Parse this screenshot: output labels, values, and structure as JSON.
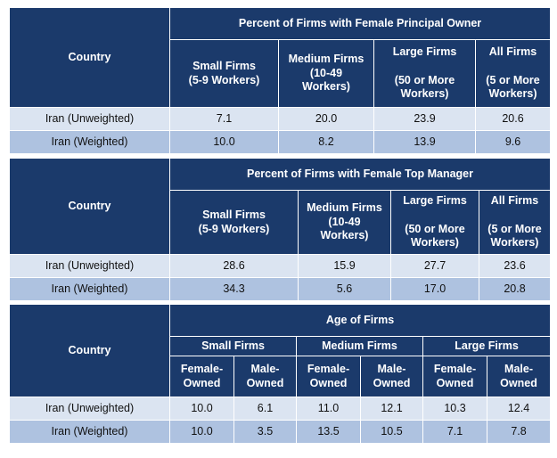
{
  "table1": {
    "country_header": "Country",
    "group_header": "Percent of Firms with Female Principal Owner",
    "cols": [
      [
        "Small Firms",
        "(5-9 Workers)"
      ],
      [
        "Medium Firms",
        "(10-49",
        "Workers)"
      ],
      [
        "Large Firms",
        "",
        "(50 or More",
        "Workers)"
      ],
      [
        "All Firms",
        "",
        "(5 or More",
        "Workers)"
      ]
    ],
    "rows": [
      {
        "label": "Iran (Unweighted)",
        "values": [
          "7.1",
          "20.0",
          "23.9",
          "20.6"
        ]
      },
      {
        "label": "Iran (Weighted)",
        "values": [
          "10.0",
          "8.2",
          "13.9",
          "9.6"
        ]
      }
    ]
  },
  "table2": {
    "country_header": "Country",
    "group_header": "Percent of Firms with Female Top Manager",
    "cols": [
      [
        "Small Firms",
        "(5-9 Workers)"
      ],
      [
        "Medium Firms",
        "(10-49",
        "Workers)"
      ],
      [
        "Large Firms",
        "",
        "(50 or More",
        "Workers)"
      ],
      [
        "All Firms",
        "",
        "(5 or More",
        "Workers)"
      ]
    ],
    "rows": [
      {
        "label": "Iran (Unweighted)",
        "values": [
          "28.6",
          "15.9",
          "27.7",
          "23.6"
        ]
      },
      {
        "label": "Iran (Weighted)",
        "values": [
          "34.3",
          "5.6",
          "17.0",
          "20.8"
        ]
      }
    ]
  },
  "table3": {
    "country_header": "Country",
    "group_header": "Age of Firms",
    "size_groups": [
      "Small Firms",
      "Medium Firms",
      "Large Firms"
    ],
    "sub_cols": [
      [
        "Female-",
        "Owned"
      ],
      [
        "Male-",
        "Owned"
      ],
      [
        "Female-",
        "Owned"
      ],
      [
        "Male-",
        "Owned"
      ],
      [
        "Female-",
        "Owned"
      ],
      [
        "Male-",
        "Owned"
      ]
    ],
    "rows": [
      {
        "label": "Iran (Unweighted)",
        "values": [
          "10.0",
          "6.1",
          "11.0",
          "12.1",
          "10.3",
          "12.4"
        ]
      },
      {
        "label": "Iran (Weighted)",
        "values": [
          "10.0",
          "3.5",
          "13.5",
          "10.5",
          "7.1",
          "7.8"
        ]
      }
    ]
  }
}
